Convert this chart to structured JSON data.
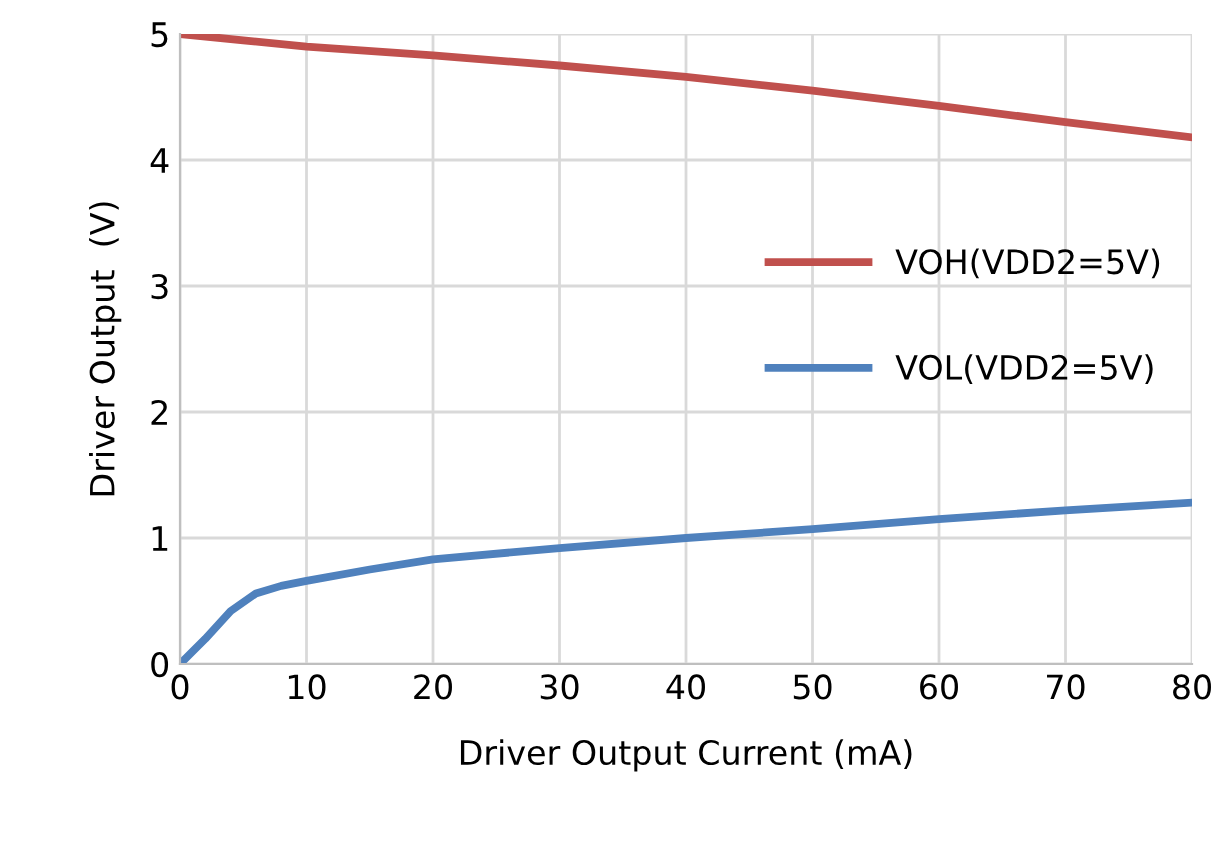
{
  "chart_data": {
    "type": "line",
    "xlabel": "Driver Output Current (mA)",
    "ylabel": "Driver Output  (V)",
    "xlim": [
      0,
      80
    ],
    "xticks": [
      0,
      10,
      20,
      30,
      40,
      50,
      60,
      70,
      80
    ],
    "ylim": [
      0,
      5
    ],
    "yticks": [
      0,
      1,
      2,
      3,
      4,
      5
    ],
    "grid": true,
    "legend": "right",
    "marker": "none",
    "line_style": "solid",
    "series": [
      {
        "name": "VOH(VDD2=5V)",
        "color": "#c0504d",
        "x": [
          0,
          5,
          10,
          20,
          30,
          40,
          50,
          60,
          70,
          80
        ],
        "values": [
          5.0,
          4.95,
          4.9,
          4.83,
          4.75,
          4.66,
          4.55,
          4.43,
          4.3,
          4.18
        ]
      },
      {
        "name": "VOL(VDD2=5V)",
        "color": "#4f81bd",
        "x": [
          0,
          2,
          4,
          6,
          8,
          10,
          15,
          20,
          30,
          40,
          50,
          60,
          70,
          80
        ],
        "values": [
          0,
          0.2,
          0.42,
          0.56,
          0.62,
          0.66,
          0.75,
          0.83,
          0.92,
          1.0,
          1.07,
          1.15,
          1.22,
          1.28
        ]
      }
    ]
  }
}
